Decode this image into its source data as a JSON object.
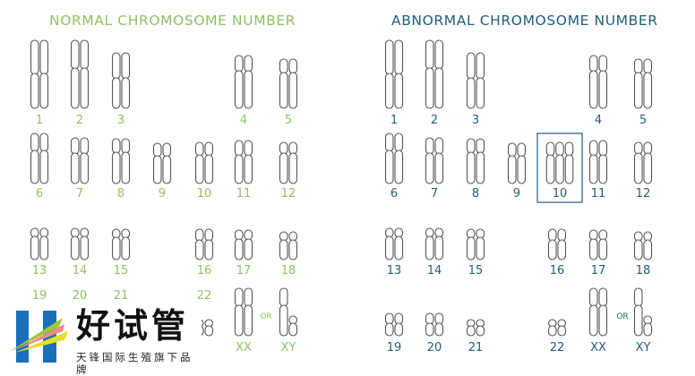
{
  "panels": [
    {
      "id": "normal",
      "title": "NORMAL CHROMOSOME NUMBER",
      "color": "#8dc262",
      "labels": [
        "1",
        "2",
        "3",
        "4",
        "5",
        "6",
        "7",
        "8",
        "9",
        "10",
        "11",
        "12",
        "13",
        "14",
        "15",
        "16",
        "17",
        "18",
        "19",
        "20",
        "21",
        "22",
        "XX",
        "XY"
      ],
      "highlight": null
    },
    {
      "id": "abnormal",
      "title": "ABNORMAL CHROMOSOME NUMBER",
      "color": "#225e7c",
      "labels": [
        "1",
        "2",
        "3",
        "4",
        "5",
        "6",
        "7",
        "8",
        "9",
        "10",
        "11",
        "12",
        "13",
        "14",
        "15",
        "16",
        "17",
        "18",
        "19",
        "20",
        "21",
        "22",
        "XX",
        "XY"
      ],
      "highlight": {
        "label": "10",
        "copies": 3
      }
    }
  ],
  "or_label": "OR",
  "logo": {
    "name": "好试管",
    "tagline": "天锋国际生殖旗下品牌",
    "colors": {
      "blue": "#1a6fba",
      "yellow": "#e6e02a",
      "pink": "#f08a8a",
      "green": "#9bc83a"
    }
  }
}
